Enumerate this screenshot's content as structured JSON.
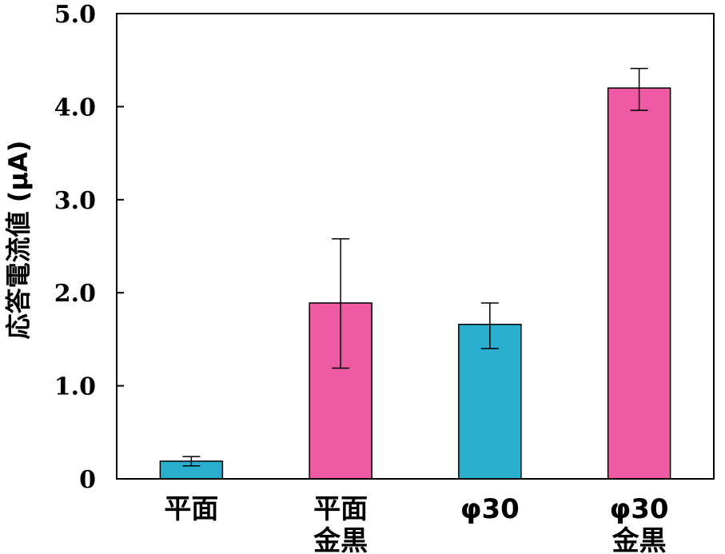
{
  "chart_data": {
    "type": "bar",
    "ylabel": "応答電流値 (μA)",
    "ylim": [
      0,
      5
    ],
    "yticks": [
      "0",
      "1.0",
      "2.0",
      "3.0",
      "4.0",
      "5.0"
    ],
    "grid": false,
    "categories": [
      [
        "平面"
      ],
      [
        "平面",
        "金黒"
      ],
      [
        "φ30"
      ],
      [
        "φ30",
        "金黒"
      ]
    ],
    "values": [
      0.19,
      1.89,
      1.66,
      4.2
    ],
    "error_low": [
      0.14,
      1.19,
      1.4,
      3.96
    ],
    "error_high": [
      0.24,
      2.58,
      1.89,
      4.41
    ],
    "bar_colors": [
      "#2aafcf",
      "#ee5aa4",
      "#2aafcf",
      "#ee5aa4"
    ]
  }
}
